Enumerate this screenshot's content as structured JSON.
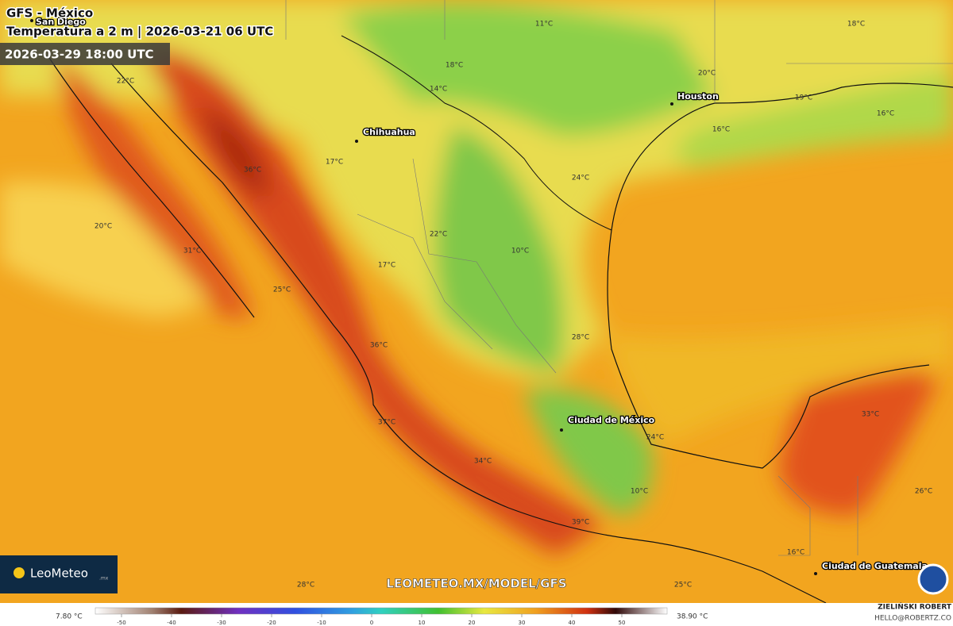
{
  "header": {
    "model": "GFS - México",
    "subtitle": "Temperatura a 2 m | 2026-03-21 06 UTC",
    "valid_time": "2026-03-29 18:00 UTC"
  },
  "cities": [
    "San Diego",
    "Chihuahua",
    "Houston",
    "Ciudad de México",
    "Ciudad de Guatemala"
  ],
  "temperature_labels": [
    "11°C",
    "18°C",
    "18°C",
    "20°C",
    "22°C",
    "14°C",
    "19°C",
    "16°C",
    "16°C",
    "17°C",
    "36°C",
    "24°C",
    "20°C",
    "22°C",
    "31°C",
    "10°C",
    "17°C",
    "25°C",
    "28°C",
    "36°C",
    "33°C",
    "37°C",
    "24°C",
    "34°C",
    "26°C",
    "10°C",
    "39°C",
    "16°C",
    "28°C",
    "25°C"
  ],
  "watermark": "LEOMETEO.MX/MODEL/GFS",
  "logo": {
    "name": "LeoMeteo",
    "suffix": ".mx"
  },
  "colorbar": {
    "min_label": "7.80 °C",
    "max_label": "38.90 °C",
    "ticks": [
      -50,
      -40,
      -30,
      -20,
      -10,
      0,
      10,
      20,
      30,
      40,
      50
    ]
  },
  "credit": {
    "author": "ZIELIŃSKI ROBERT",
    "email": "HELLO@ROBERTZ.CO"
  }
}
